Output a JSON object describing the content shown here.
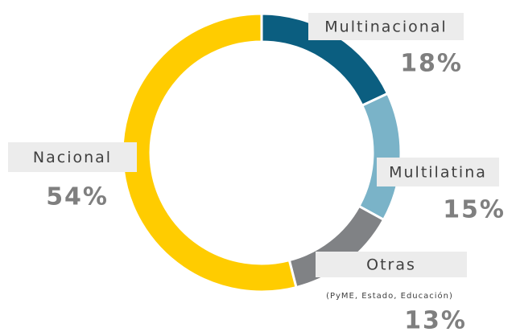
{
  "chart_data": {
    "type": "donut",
    "categories": [
      "Multinacional",
      "Multilatina",
      "Otras",
      "Nacional"
    ],
    "values": [
      18,
      15,
      13,
      54
    ],
    "value_labels": [
      "18%",
      "15%",
      "13%",
      "54%"
    ],
    "colors": [
      "#0b5e80",
      "#7ab3c8",
      "#808285",
      "#ffcc00"
    ],
    "annotations": [
      "(PyME, Estado, Educación)"
    ]
  }
}
